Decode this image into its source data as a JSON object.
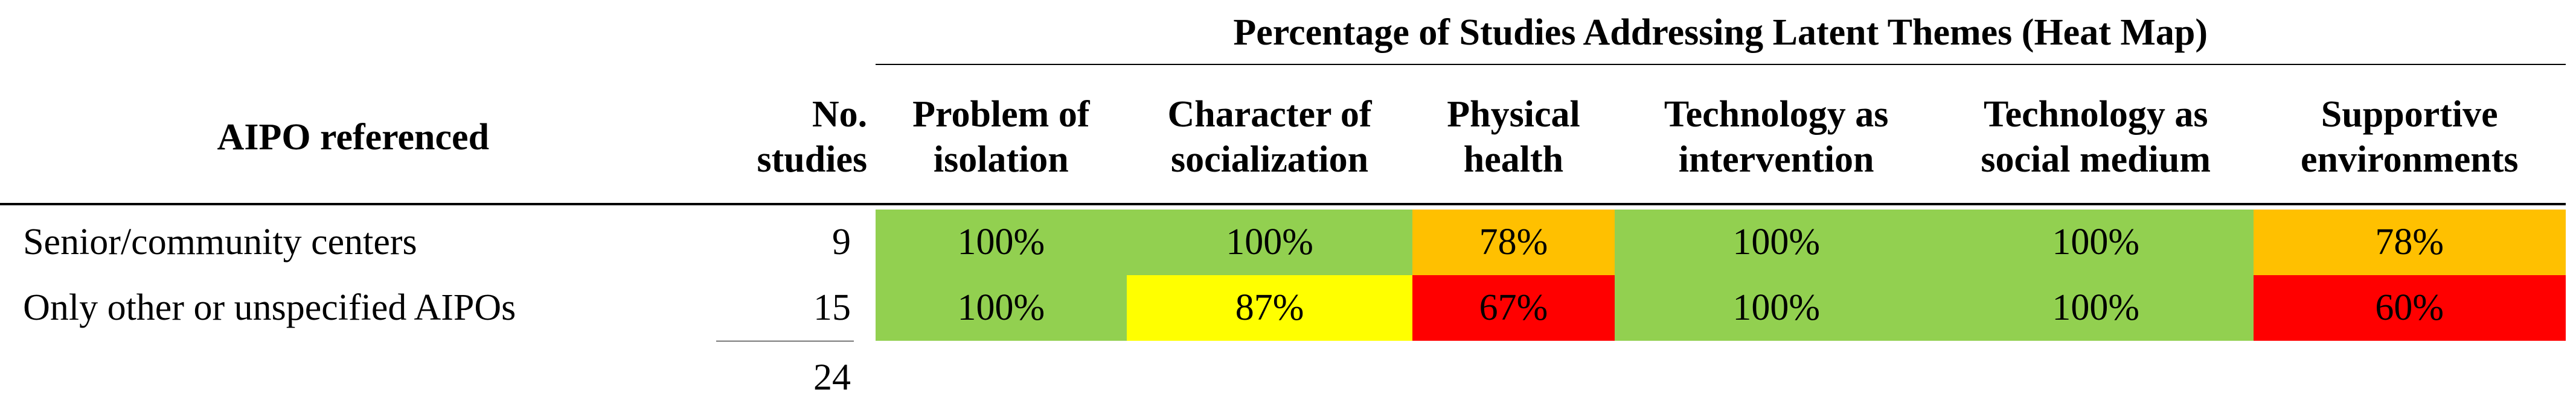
{
  "title": "Percentage of Studies Addressing Latent Themes (Heat Map)",
  "header": {
    "row_label": "AIPO referenced",
    "count_label": "No. studies",
    "themes": [
      "Problem of isolation",
      "Character of socialization",
      "Physical health",
      "Technology as intervention",
      "Technology as social medium",
      "Supportive environments"
    ]
  },
  "rows": [
    {
      "label": "Senior/community centers",
      "count": "9",
      "cells": [
        {
          "text": "100%",
          "color": "#92d050"
        },
        {
          "text": "100%",
          "color": "#92d050"
        },
        {
          "text": "78%",
          "color": "#ffc000"
        },
        {
          "text": "100%",
          "color": "#92d050"
        },
        {
          "text": "100%",
          "color": "#92d050"
        },
        {
          "text": "78%",
          "color": "#ffc000"
        }
      ]
    },
    {
      "label": "Only other or unspecified AIPOs",
      "count": "15",
      "cells": [
        {
          "text": "100%",
          "color": "#92d050"
        },
        {
          "text": "87%",
          "color": "#ffff00"
        },
        {
          "text": "67%",
          "color": "#ff0000"
        },
        {
          "text": "100%",
          "color": "#92d050"
        },
        {
          "text": "100%",
          "color": "#92d050"
        },
        {
          "text": "60%",
          "color": "#ff0000"
        }
      ]
    }
  ],
  "total": "24"
}
